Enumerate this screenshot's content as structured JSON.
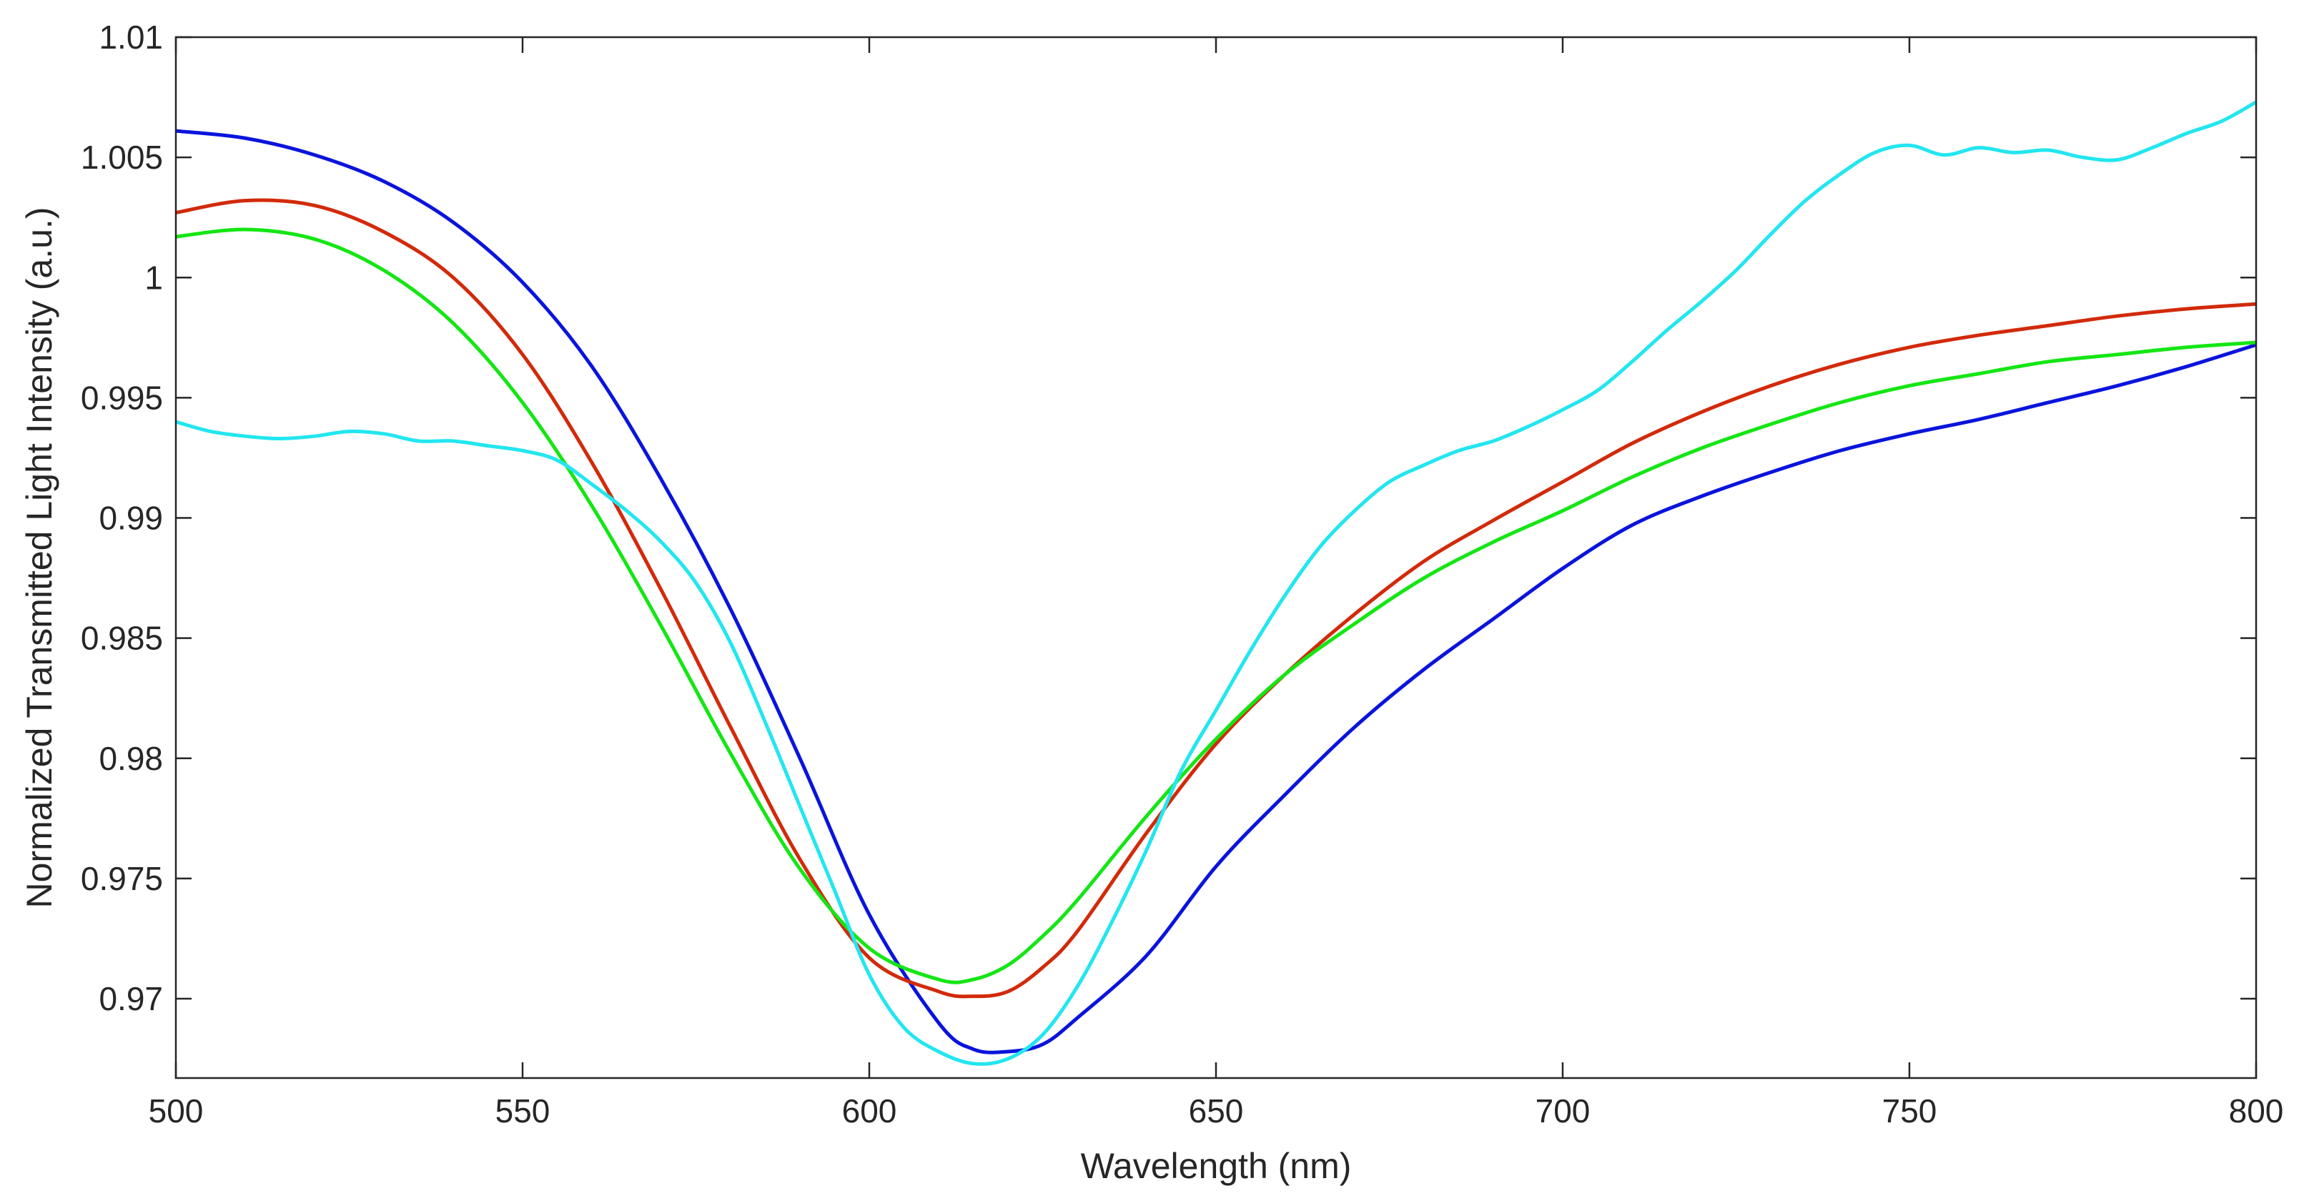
{
  "chart_data": {
    "type": "line",
    "title": "",
    "xlabel": "Wavelength (nm)",
    "ylabel": "Normalized Transmitted Light Intensity (a.u.)",
    "xlim": [
      500,
      800
    ],
    "ylim": [
      0.9667,
      1.01
    ],
    "xticks": [
      500,
      550,
      600,
      650,
      700,
      750,
      800
    ],
    "xtick_labels": [
      "500",
      "550",
      "600",
      "650",
      "700",
      "750",
      "800"
    ],
    "yticks": [
      0.97,
      0.975,
      0.98,
      0.985,
      0.99,
      0.995,
      1.0,
      1.005,
      1.01
    ],
    "ytick_labels": [
      "0.97",
      "0.975",
      "0.98",
      "0.985",
      "0.99",
      "0.995",
      "1",
      "1.005",
      "1.01"
    ],
    "grid": false,
    "series": [
      {
        "name": "blue",
        "color": "#0a14dc",
        "x": [
          500,
          510,
          520,
          530,
          540,
          550,
          560,
          570,
          580,
          590,
          600,
          610,
          615,
          620,
          625,
          630,
          640,
          650,
          660,
          670,
          680,
          690,
          700,
          710,
          720,
          730,
          740,
          750,
          760,
          770,
          780,
          790,
          800
        ],
        "y": [
          1.0061,
          1.0058,
          1.0051,
          1.004,
          1.0023,
          0.9998,
          0.9963,
          0.9916,
          0.9862,
          0.98,
          0.9735,
          0.969,
          0.9679,
          0.9678,
          0.9681,
          0.9692,
          0.9718,
          0.9755,
          0.9785,
          0.9813,
          0.9837,
          0.9858,
          0.9879,
          0.9897,
          0.9909,
          0.9919,
          0.9928,
          0.9935,
          0.9941,
          0.9948,
          0.9955,
          0.9963,
          0.9972
        ]
      },
      {
        "name": "red",
        "color": "#d22a0a",
        "x": [
          500,
          510,
          520,
          530,
          540,
          550,
          560,
          570,
          580,
          590,
          600,
          610,
          615,
          620,
          625,
          630,
          640,
          650,
          660,
          670,
          680,
          690,
          700,
          710,
          720,
          730,
          740,
          750,
          760,
          770,
          780,
          790,
          800
        ],
        "y": [
          1.0027,
          1.0032,
          1.003,
          1.0019,
          1.0,
          0.9968,
          0.9923,
          0.987,
          0.9813,
          0.9758,
          0.9717,
          0.9703,
          0.9701,
          0.9703,
          0.9713,
          0.9728,
          0.9769,
          0.9806,
          0.9835,
          0.986,
          0.9882,
          0.9899,
          0.9915,
          0.9931,
          0.9944,
          0.9955,
          0.9964,
          0.9971,
          0.9976,
          0.998,
          0.9984,
          0.9987,
          0.9989
        ]
      },
      {
        "name": "green",
        "color": "#14e614",
        "x": [
          500,
          510,
          520,
          530,
          540,
          550,
          560,
          570,
          580,
          590,
          600,
          610,
          615,
          620,
          625,
          630,
          640,
          650,
          660,
          670,
          680,
          690,
          700,
          710,
          720,
          730,
          740,
          750,
          760,
          770,
          780,
          790,
          800
        ],
        "y": [
          1.0017,
          1.002,
          1.0016,
          1.0003,
          0.9981,
          0.9948,
          0.9905,
          0.9855,
          0.9802,
          0.9754,
          0.9721,
          0.9708,
          0.9708,
          0.9714,
          0.9726,
          0.9741,
          0.9776,
          0.9808,
          0.9835,
          0.9856,
          0.9875,
          0.989,
          0.9903,
          0.9917,
          0.9929,
          0.9939,
          0.9948,
          0.9955,
          0.996,
          0.9965,
          0.9968,
          0.9971,
          0.9973
        ]
      },
      {
        "name": "cyan",
        "color": "#22e6f0",
        "x": [
          500,
          505,
          510,
          515,
          520,
          525,
          530,
          535,
          540,
          545,
          550,
          555,
          560,
          565,
          570,
          575,
          580,
          585,
          590,
          595,
          600,
          605,
          610,
          615,
          620,
          625,
          630,
          635,
          640,
          645,
          650,
          655,
          660,
          665,
          670,
          675,
          680,
          685,
          690,
          695,
          700,
          705,
          710,
          715,
          720,
          725,
          730,
          735,
          740,
          745,
          750,
          755,
          760,
          765,
          770,
          775,
          780,
          785,
          790,
          795,
          800
        ],
        "y": [
          0.994,
          0.9936,
          0.9934,
          0.9933,
          0.9934,
          0.9936,
          0.9935,
          0.9932,
          0.9932,
          0.993,
          0.9928,
          0.9924,
          0.9914,
          0.9903,
          0.989,
          0.9873,
          0.9848,
          0.9815,
          0.978,
          0.9745,
          0.971,
          0.9688,
          0.9678,
          0.9673,
          0.9675,
          0.9685,
          0.9705,
          0.9732,
          0.9762,
          0.9795,
          0.982,
          0.9845,
          0.9868,
          0.9888,
          0.9903,
          0.9915,
          0.9922,
          0.9928,
          0.9932,
          0.9938,
          0.9945,
          0.9953,
          0.9965,
          0.9978,
          0.999,
          1.0003,
          1.0018,
          1.0032,
          1.0043,
          1.0052,
          1.0055,
          1.0051,
          1.0054,
          1.0052,
          1.0053,
          1.005,
          1.0049,
          1.0054,
          1.006,
          1.0065,
          1.0073
        ]
      }
    ]
  }
}
